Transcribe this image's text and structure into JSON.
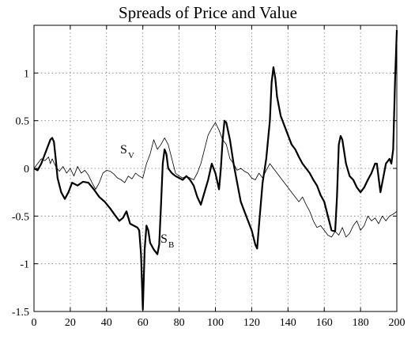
{
  "chart_data": {
    "type": "line",
    "title": "Spreads of Price and Value",
    "xlabel": "",
    "ylabel": "",
    "xlim": [
      0,
      200
    ],
    "ylim": [
      -1.5,
      1.5
    ],
    "xticks": [
      0,
      20,
      40,
      60,
      80,
      100,
      120,
      140,
      160,
      180,
      200
    ],
    "yticks": [
      -1.5,
      -1,
      -0.5,
      0,
      0.5,
      1
    ],
    "xtick_labels": [
      "0",
      "20",
      "40",
      "60",
      "80",
      "100",
      "120",
      "140",
      "160",
      "180",
      "200"
    ],
    "ytick_labels": [
      "-1.5",
      "-1",
      "-0.5",
      "0",
      "0.5",
      "1"
    ],
    "grid": true,
    "annotations": [
      {
        "main": "S",
        "sub": "V",
        "x": 103,
        "y": 0.12
      },
      {
        "main": "S",
        "sub": "B",
        "x": 155,
        "y": -0.82
      }
    ],
    "series": [
      {
        "style": "thin",
        "points": [
          [
            0,
            0
          ],
          [
            2,
            0.05
          ],
          [
            4,
            0.1
          ],
          [
            6,
            0.08
          ],
          [
            8,
            0.12
          ],
          [
            9,
            0.05
          ],
          [
            10,
            0.1
          ],
          [
            12,
            0.02
          ],
          [
            14,
            -0.03
          ],
          [
            16,
            0.02
          ],
          [
            18,
            -0.05
          ],
          [
            20,
            0
          ],
          [
            22,
            -0.08
          ],
          [
            24,
            0.02
          ],
          [
            26,
            -0.05
          ],
          [
            28,
            -0.02
          ],
          [
            30,
            -0.07
          ],
          [
            32,
            -0.15
          ],
          [
            34,
            -0.22
          ],
          [
            36,
            -0.15
          ],
          [
            38,
            -0.05
          ],
          [
            40,
            -0.02
          ],
          [
            42,
            -0.03
          ],
          [
            44,
            -0.06
          ],
          [
            46,
            -0.1
          ],
          [
            48,
            -0.12
          ],
          [
            50,
            -0.15
          ],
          [
            52,
            -0.08
          ],
          [
            54,
            -0.11
          ],
          [
            56,
            -0.05
          ],
          [
            58,
            -0.08
          ],
          [
            60,
            -0.1
          ],
          [
            62,
            0.05
          ],
          [
            64,
            0.15
          ],
          [
            66,
            0.3
          ],
          [
            68,
            0.2
          ],
          [
            70,
            0.25
          ],
          [
            72,
            0.32
          ],
          [
            74,
            0.25
          ],
          [
            76,
            0.1
          ],
          [
            78,
            -0.05
          ],
          [
            80,
            -0.08
          ],
          [
            82,
            -0.1
          ],
          [
            84,
            -0.08
          ],
          [
            86,
            -0.1
          ],
          [
            88,
            -0.12
          ],
          [
            90,
            -0.05
          ],
          [
            92,
            0.05
          ],
          [
            94,
            0.2
          ],
          [
            96,
            0.35
          ],
          [
            98,
            0.42
          ],
          [
            100,
            0.48
          ],
          [
            102,
            0.4
          ],
          [
            104,
            0.3
          ],
          [
            106,
            0.25
          ],
          [
            108,
            0.1
          ],
          [
            110,
            0.05
          ],
          [
            112,
            -0.02
          ],
          [
            114,
            0
          ],
          [
            116,
            -0.03
          ],
          [
            118,
            -0.05
          ],
          [
            120,
            -0.1
          ],
          [
            122,
            -0.12
          ],
          [
            124,
            -0.05
          ],
          [
            126,
            -0.1
          ],
          [
            128,
            -0.02
          ],
          [
            130,
            0.05
          ],
          [
            132,
            0
          ],
          [
            134,
            -0.05
          ],
          [
            136,
            -0.1
          ],
          [
            138,
            -0.15
          ],
          [
            140,
            -0.2
          ],
          [
            142,
            -0.25
          ],
          [
            144,
            -0.3
          ],
          [
            146,
            -0.35
          ],
          [
            148,
            -0.3
          ],
          [
            150,
            -0.38
          ],
          [
            152,
            -0.45
          ],
          [
            154,
            -0.55
          ],
          [
            156,
            -0.62
          ],
          [
            158,
            -0.6
          ],
          [
            160,
            -0.65
          ],
          [
            162,
            -0.7
          ],
          [
            164,
            -0.72
          ],
          [
            166,
            -0.66
          ],
          [
            168,
            -0.7
          ],
          [
            170,
            -0.62
          ],
          [
            172,
            -0.72
          ],
          [
            174,
            -0.68
          ],
          [
            176,
            -0.6
          ],
          [
            178,
            -0.55
          ],
          [
            180,
            -0.65
          ],
          [
            182,
            -0.6
          ],
          [
            184,
            -0.5
          ],
          [
            186,
            -0.55
          ],
          [
            188,
            -0.52
          ],
          [
            190,
            -0.58
          ],
          [
            192,
            -0.5
          ],
          [
            194,
            -0.55
          ],
          [
            196,
            -0.5
          ],
          [
            198,
            -0.48
          ],
          [
            200,
            -0.45
          ]
        ]
      },
      {
        "style": "thick",
        "points": [
          [
            0,
            0
          ],
          [
            2,
            -0.02
          ],
          [
            4,
            0.05
          ],
          [
            6,
            0.15
          ],
          [
            8,
            0.25
          ],
          [
            9,
            0.3
          ],
          [
            10,
            0.32
          ],
          [
            11,
            0.28
          ],
          [
            12,
            0.1
          ],
          [
            13,
            -0.1
          ],
          [
            15,
            -0.25
          ],
          [
            17,
            -0.32
          ],
          [
            19,
            -0.25
          ],
          [
            21,
            -0.15
          ],
          [
            24,
            -0.18
          ],
          [
            27,
            -0.14
          ],
          [
            30,
            -0.15
          ],
          [
            33,
            -0.22
          ],
          [
            36,
            -0.3
          ],
          [
            39,
            -0.35
          ],
          [
            42,
            -0.42
          ],
          [
            45,
            -0.5
          ],
          [
            47,
            -0.55
          ],
          [
            49,
            -0.52
          ],
          [
            51,
            -0.45
          ],
          [
            53,
            -0.58
          ],
          [
            55,
            -0.6
          ],
          [
            57,
            -0.62
          ],
          [
            58,
            -0.65
          ],
          [
            59,
            -0.9
          ],
          [
            60,
            -1.48
          ],
          [
            61,
            -0.85
          ],
          [
            62,
            -0.6
          ],
          [
            63,
            -0.65
          ],
          [
            64,
            -0.78
          ],
          [
            66,
            -0.85
          ],
          [
            68,
            -0.9
          ],
          [
            69,
            -0.8
          ],
          [
            70,
            -0.4
          ],
          [
            71,
            0.05
          ],
          [
            72,
            0.2
          ],
          [
            73,
            0.15
          ],
          [
            74,
            0
          ],
          [
            76,
            -0.05
          ],
          [
            78,
            -0.08
          ],
          [
            80,
            -0.1
          ],
          [
            82,
            -0.12
          ],
          [
            84,
            -0.08
          ],
          [
            86,
            -0.12
          ],
          [
            88,
            -0.18
          ],
          [
            90,
            -0.3
          ],
          [
            92,
            -0.38
          ],
          [
            94,
            -0.25
          ],
          [
            96,
            -0.12
          ],
          [
            98,
            0.05
          ],
          [
            100,
            -0.05
          ],
          [
            102,
            -0.22
          ],
          [
            103,
            0
          ],
          [
            104,
            0.3
          ],
          [
            105,
            0.5
          ],
          [
            106,
            0.48
          ],
          [
            108,
            0.3
          ],
          [
            110,
            0.05
          ],
          [
            112,
            -0.15
          ],
          [
            114,
            -0.35
          ],
          [
            116,
            -0.45
          ],
          [
            118,
            -0.55
          ],
          [
            120,
            -0.65
          ],
          [
            122,
            -0.8
          ],
          [
            123,
            -0.84
          ],
          [
            124,
            -0.6
          ],
          [
            126,
            -0.15
          ],
          [
            128,
            0.1
          ],
          [
            130,
            0.5
          ],
          [
            131,
            0.9
          ],
          [
            132,
            1.06
          ],
          [
            133,
            0.95
          ],
          [
            134,
            0.75
          ],
          [
            136,
            0.55
          ],
          [
            138,
            0.45
          ],
          [
            140,
            0.35
          ],
          [
            142,
            0.25
          ],
          [
            144,
            0.2
          ],
          [
            146,
            0.12
          ],
          [
            148,
            0.05
          ],
          [
            150,
            0
          ],
          [
            152,
            -0.05
          ],
          [
            154,
            -0.12
          ],
          [
            156,
            -0.18
          ],
          [
            158,
            -0.28
          ],
          [
            160,
            -0.35
          ],
          [
            162,
            -0.5
          ],
          [
            164,
            -0.65
          ],
          [
            166,
            -0.66
          ],
          [
            167,
            -0.3
          ],
          [
            168,
            0.25
          ],
          [
            169,
            0.34
          ],
          [
            170,
            0.3
          ],
          [
            172,
            0.05
          ],
          [
            174,
            -0.08
          ],
          [
            176,
            -0.12
          ],
          [
            178,
            -0.2
          ],
          [
            180,
            -0.25
          ],
          [
            182,
            -0.2
          ],
          [
            184,
            -0.12
          ],
          [
            186,
            -0.05
          ],
          [
            188,
            0.05
          ],
          [
            189,
            0.05
          ],
          [
            190,
            -0.1
          ],
          [
            191,
            -0.25
          ],
          [
            192,
            -0.15
          ],
          [
            194,
            0.05
          ],
          [
            196,
            0.1
          ],
          [
            197,
            0.05
          ],
          [
            198,
            0.2
          ],
          [
            199,
            0.9
          ],
          [
            200,
            1.45
          ]
        ]
      }
    ]
  }
}
